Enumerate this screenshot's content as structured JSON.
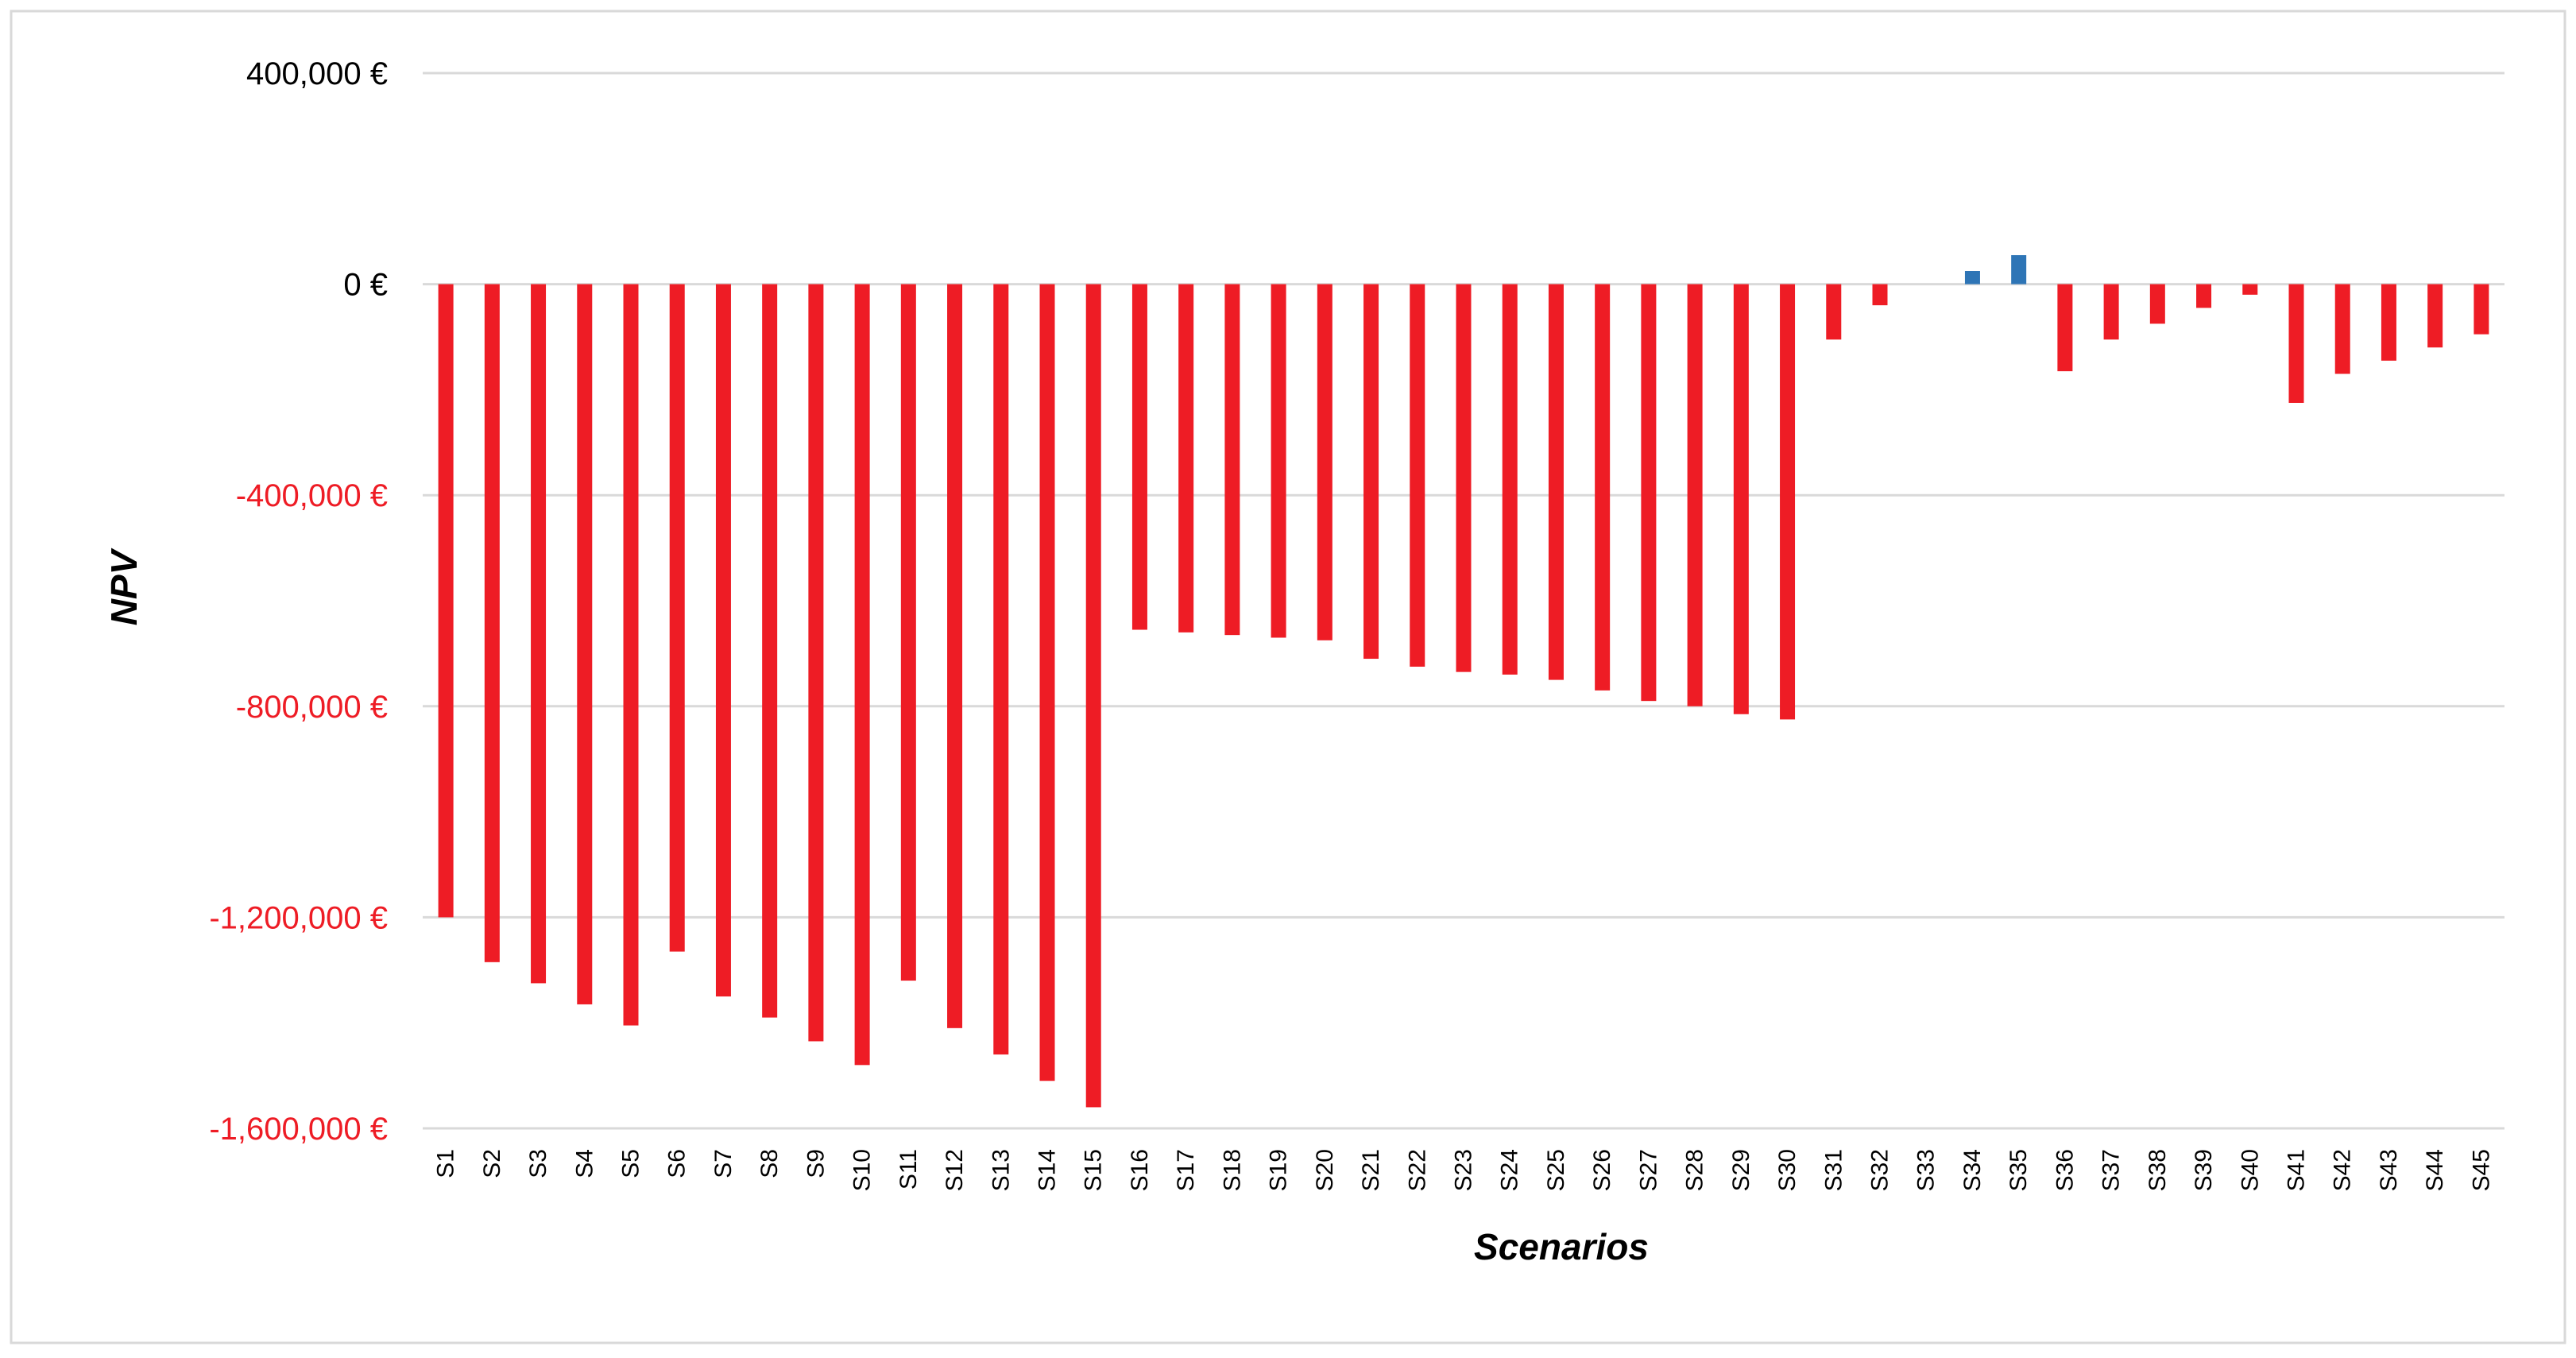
{
  "chart_data": {
    "type": "bar",
    "title": "",
    "xlabel": "Scenarios",
    "ylabel": "NPV",
    "ylim": [
      -1600000,
      400000
    ],
    "yticks": [
      400000,
      0,
      -400000,
      -800000,
      -1200000,
      -1600000
    ],
    "ytick_labels": [
      "400,000 €",
      "0 €",
      "-400,000 €",
      "-800,000 €",
      "-1,200,000 €",
      "-1,600,000 €"
    ],
    "grid": true,
    "legend": "none",
    "categories": [
      "S1",
      "S2",
      "S3",
      "S4",
      "S5",
      "S6",
      "S7",
      "S8",
      "S9",
      "S10",
      "S11",
      "S12",
      "S13",
      "S14",
      "S15",
      "S16",
      "S17",
      "S18",
      "S19",
      "S20",
      "S21",
      "S22",
      "S23",
      "S24",
      "S25",
      "S26",
      "S27",
      "S28",
      "S29",
      "S30",
      "S31",
      "S32",
      "S33",
      "S34",
      "S35",
      "S36",
      "S37",
      "S38",
      "S39",
      "S40",
      "S41",
      "S42",
      "S43",
      "S44",
      "S45"
    ],
    "values": [
      -1200000,
      -1285000,
      -1325000,
      -1365000,
      -1405000,
      -1265000,
      -1350000,
      -1390000,
      -1435000,
      -1480000,
      -1320000,
      -1410000,
      -1460000,
      -1510000,
      -1560000,
      -655000,
      -660000,
      -665000,
      -670000,
      -675000,
      -710000,
      -725000,
      -735000,
      -740000,
      -750000,
      -770000,
      -790000,
      -800000,
      -815000,
      -825000,
      -105000,
      -40000,
      0,
      25000,
      55000,
      -165000,
      -105000,
      -75000,
      -45000,
      -20000,
      -225000,
      -170000,
      -145000,
      -120000,
      -95000
    ],
    "colors": {
      "positive": "#2E75B6",
      "negative": "#EE1C25",
      "negative_tick_label": "#EE1C25",
      "positive_tick_label": "#000000",
      "gridline": "#D9D9D9",
      "frame": "#D9D9D9"
    }
  }
}
